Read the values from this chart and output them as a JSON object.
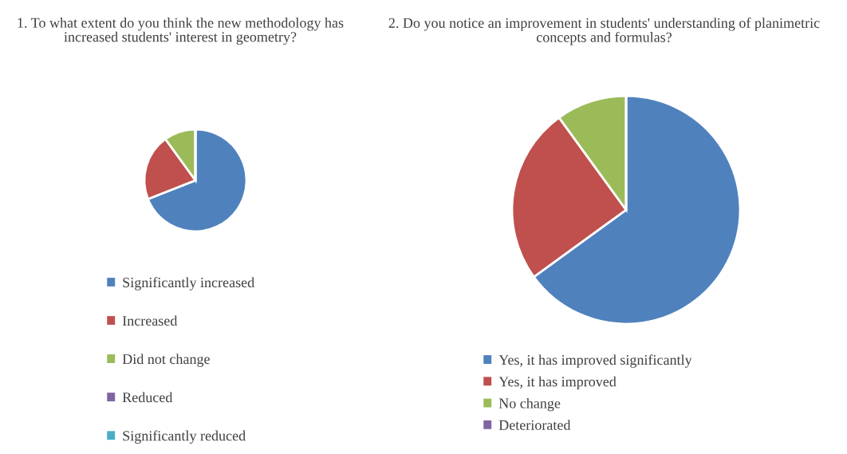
{
  "chart_data": [
    {
      "type": "pie",
      "title": "1. To what extent do you think the new methodology has increased students' interest in geometry?",
      "categories": [
        "Significantly increased",
        "Increased",
        "Did not change",
        "Reduced",
        "Significantly reduced"
      ],
      "values": [
        69,
        21,
        10,
        0,
        0
      ],
      "colors": [
        "#4f81bd",
        "#c0504d",
        "#9bbb59",
        "#8064a2",
        "#4bacc6"
      ],
      "legend": "bottom"
    },
    {
      "type": "pie",
      "title": "2. Do you notice an improvement in students' understanding of planimetric concepts and formulas?",
      "categories": [
        "Yes, it has improved significantly",
        "Yes, it has improved",
        "No change",
        "Deteriorated"
      ],
      "values": [
        65,
        25,
        10,
        0
      ],
      "colors": [
        "#4f81bd",
        "#c0504d",
        "#9bbb59",
        "#8064a2"
      ],
      "legend": "bottom"
    }
  ]
}
